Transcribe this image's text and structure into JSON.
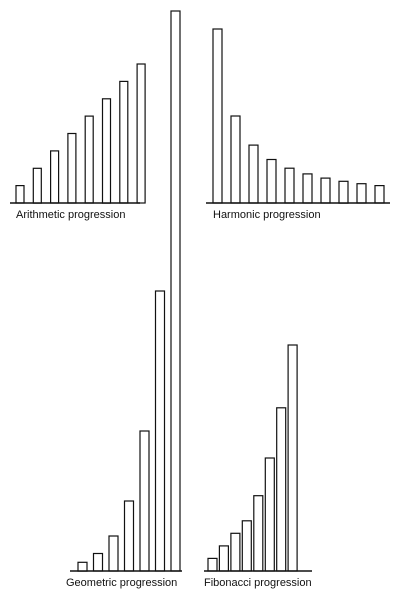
{
  "chart_data": [
    {
      "type": "bar",
      "id": "arithmetic",
      "xlabel": "Arithmetic progression",
      "values": [
        1,
        2,
        3,
        4,
        5,
        6,
        7,
        8
      ],
      "ylim": [
        0,
        8
      ]
    },
    {
      "type": "bar",
      "id": "harmonic",
      "xlabel": "Harmonic progression",
      "values": [
        1,
        0.5,
        0.333,
        0.25,
        0.2,
        0.167,
        0.143,
        0.125,
        0.111,
        0.1
      ],
      "ylim": [
        0,
        1
      ]
    },
    {
      "type": "bar",
      "id": "geometric",
      "xlabel": "Geometric progression",
      "values": [
        1,
        2,
        4,
        8,
        16,
        32,
        64
      ],
      "ylim": [
        0,
        64
      ]
    },
    {
      "type": "bar",
      "id": "fibonacci",
      "xlabel": "Fibonacci progression",
      "values": [
        1,
        2,
        3,
        4,
        6,
        9,
        13,
        18
      ],
      "ylim": [
        0,
        18
      ]
    }
  ]
}
